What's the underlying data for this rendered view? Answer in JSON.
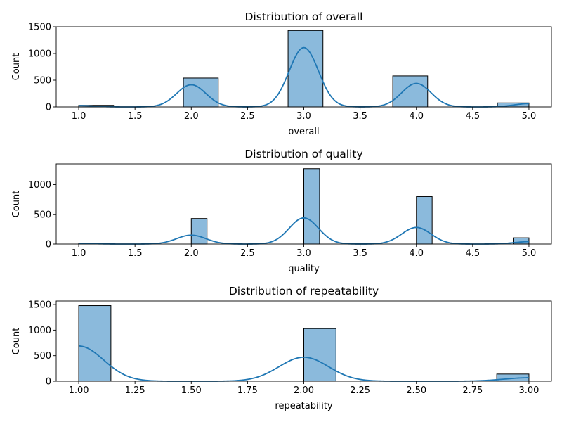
{
  "chart_data": [
    {
      "type": "bar",
      "title": "Distribution of overall",
      "xlabel": "overall",
      "ylabel": "Count",
      "xlim": [
        0.8,
        5.2
      ],
      "ylim": [
        0,
        1500
      ],
      "xticks": [
        1.0,
        1.5,
        2.0,
        2.5,
        3.0,
        3.5,
        4.0,
        4.5,
        5.0
      ],
      "xtick_labels": [
        "1.0",
        "1.5",
        "2.0",
        "2.5",
        "3.0",
        "3.5",
        "4.0",
        "4.5",
        "5.0"
      ],
      "yticks": [
        0,
        500,
        1000,
        1500
      ],
      "ytick_labels": [
        "0",
        "500",
        "1000",
        "1500"
      ],
      "bins": [
        {
          "x0": 1.0,
          "x1": 1.31,
          "count": 30
        },
        {
          "x0": 1.93,
          "x1": 2.24,
          "count": 540
        },
        {
          "x0": 2.86,
          "x1": 3.17,
          "count": 1430
        },
        {
          "x0": 3.79,
          "x1": 4.1,
          "count": 580
        },
        {
          "x0": 4.72,
          "x1": 5.0,
          "count": 75
        }
      ],
      "kde": {
        "peaks": [
          {
            "mu": 1.0,
            "height": 25,
            "sigma": 0.13
          },
          {
            "mu": 2.0,
            "height": 415,
            "sigma": 0.13
          },
          {
            "mu": 3.0,
            "height": 1110,
            "sigma": 0.13
          },
          {
            "mu": 4.0,
            "height": 440,
            "sigma": 0.13
          },
          {
            "mu": 5.0,
            "height": 62,
            "sigma": 0.13
          }
        ]
      }
    },
    {
      "type": "bar",
      "title": "Distribution of quality",
      "xlabel": "quality",
      "ylabel": "Count",
      "xlim": [
        0.8,
        5.2
      ],
      "ylim": [
        0,
        1350
      ],
      "xticks": [
        1.0,
        1.5,
        2.0,
        2.5,
        3.0,
        3.5,
        4.0,
        4.5,
        5.0
      ],
      "xtick_labels": [
        "1.0",
        "1.5",
        "2.0",
        "2.5",
        "3.0",
        "3.5",
        "4.0",
        "4.5",
        "5.0"
      ],
      "yticks": [
        0,
        500,
        1000
      ],
      "ytick_labels": [
        "0",
        "500",
        "1000"
      ],
      "bins": [
        {
          "x0": 1.0,
          "x1": 1.14,
          "count": 15
        },
        {
          "x0": 2.0,
          "x1": 2.14,
          "count": 430
        },
        {
          "x0": 3.0,
          "x1": 3.14,
          "count": 1270
        },
        {
          "x0": 4.0,
          "x1": 4.14,
          "count": 800
        },
        {
          "x0": 4.86,
          "x1": 5.0,
          "count": 105
        }
      ],
      "kde": {
        "peaks": [
          {
            "mu": 1.0,
            "height": 10,
            "sigma": 0.13
          },
          {
            "mu": 2.0,
            "height": 150,
            "sigma": 0.13
          },
          {
            "mu": 3.0,
            "height": 440,
            "sigma": 0.13
          },
          {
            "mu": 4.0,
            "height": 280,
            "sigma": 0.13
          },
          {
            "mu": 5.0,
            "height": 40,
            "sigma": 0.13
          }
        ]
      }
    },
    {
      "type": "bar",
      "title": "Distribution of repeatability",
      "xlabel": "repeatability",
      "ylabel": "Count",
      "xlim": [
        0.9,
        3.1
      ],
      "ylim": [
        0,
        1570
      ],
      "xticks": [
        1.0,
        1.25,
        1.5,
        1.75,
        2.0,
        2.25,
        2.5,
        2.75,
        3.0
      ],
      "xtick_labels": [
        "1.00",
        "1.25",
        "1.50",
        "1.75",
        "2.00",
        "2.25",
        "2.50",
        "2.75",
        "3.00"
      ],
      "yticks": [
        0,
        500,
        1000,
        1500
      ],
      "ytick_labels": [
        "0",
        "500",
        "1000",
        "1500"
      ],
      "bins": [
        {
          "x0": 1.0,
          "x1": 1.143,
          "count": 1480
        },
        {
          "x0": 2.0,
          "x1": 2.143,
          "count": 1030
        },
        {
          "x0": 2.857,
          "x1": 3.0,
          "count": 140
        }
      ],
      "kde": {
        "peaks": [
          {
            "mu": 1.0,
            "height": 690,
            "sigma": 0.11
          },
          {
            "mu": 2.0,
            "height": 470,
            "sigma": 0.11
          },
          {
            "mu": 3.0,
            "height": 68,
            "sigma": 0.11
          }
        ]
      }
    }
  ]
}
